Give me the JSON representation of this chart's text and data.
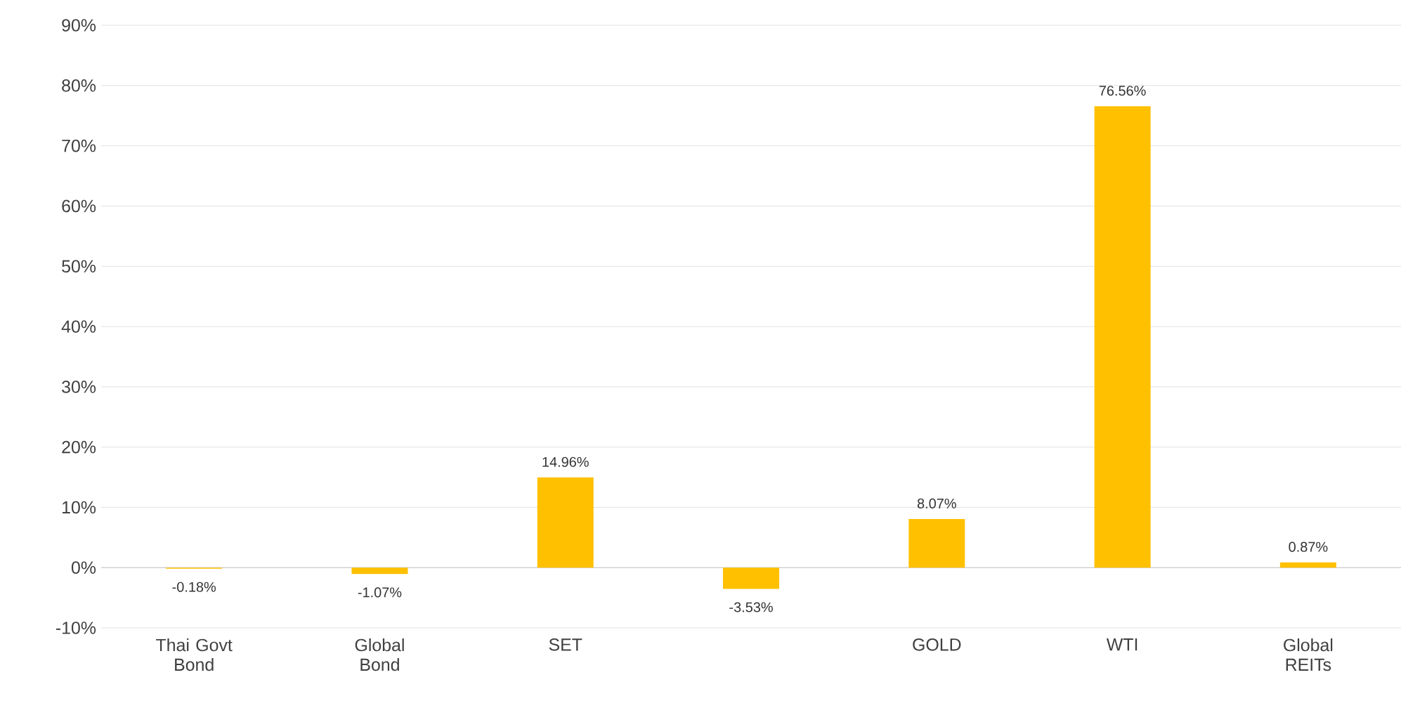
{
  "chart_data": {
    "type": "bar",
    "categories": [
      "Thai Govt Bond",
      "Global Bond",
      "SET",
      null,
      "GOLD",
      "WTI",
      "Global REITs"
    ],
    "values": [
      -0.18,
      -1.07,
      14.96,
      -3.53,
      8.07,
      76.56,
      0.87
    ],
    "value_labels": [
      "-0.18%",
      "-1.07%",
      "14.96%",
      "-3.53%",
      "8.07%",
      "76.56%",
      "0.87%"
    ],
    "color": "#ffc000",
    "ylim": [
      -10,
      90
    ],
    "yticks": [
      {
        "value": -10,
        "label": "-10%"
      },
      {
        "value": 0,
        "label": "0%"
      },
      {
        "value": 10,
        "label": "10%"
      },
      {
        "value": 20,
        "label": "20%"
      },
      {
        "value": 30,
        "label": "30%"
      },
      {
        "value": 40,
        "label": "40%"
      },
      {
        "value": 50,
        "label": "50%"
      },
      {
        "value": 60,
        "label": "60%"
      },
      {
        "value": 70,
        "label": "70%"
      },
      {
        "value": 80,
        "label": "80%"
      },
      {
        "value": 90,
        "label": "90%"
      }
    ],
    "grid": "y"
  }
}
